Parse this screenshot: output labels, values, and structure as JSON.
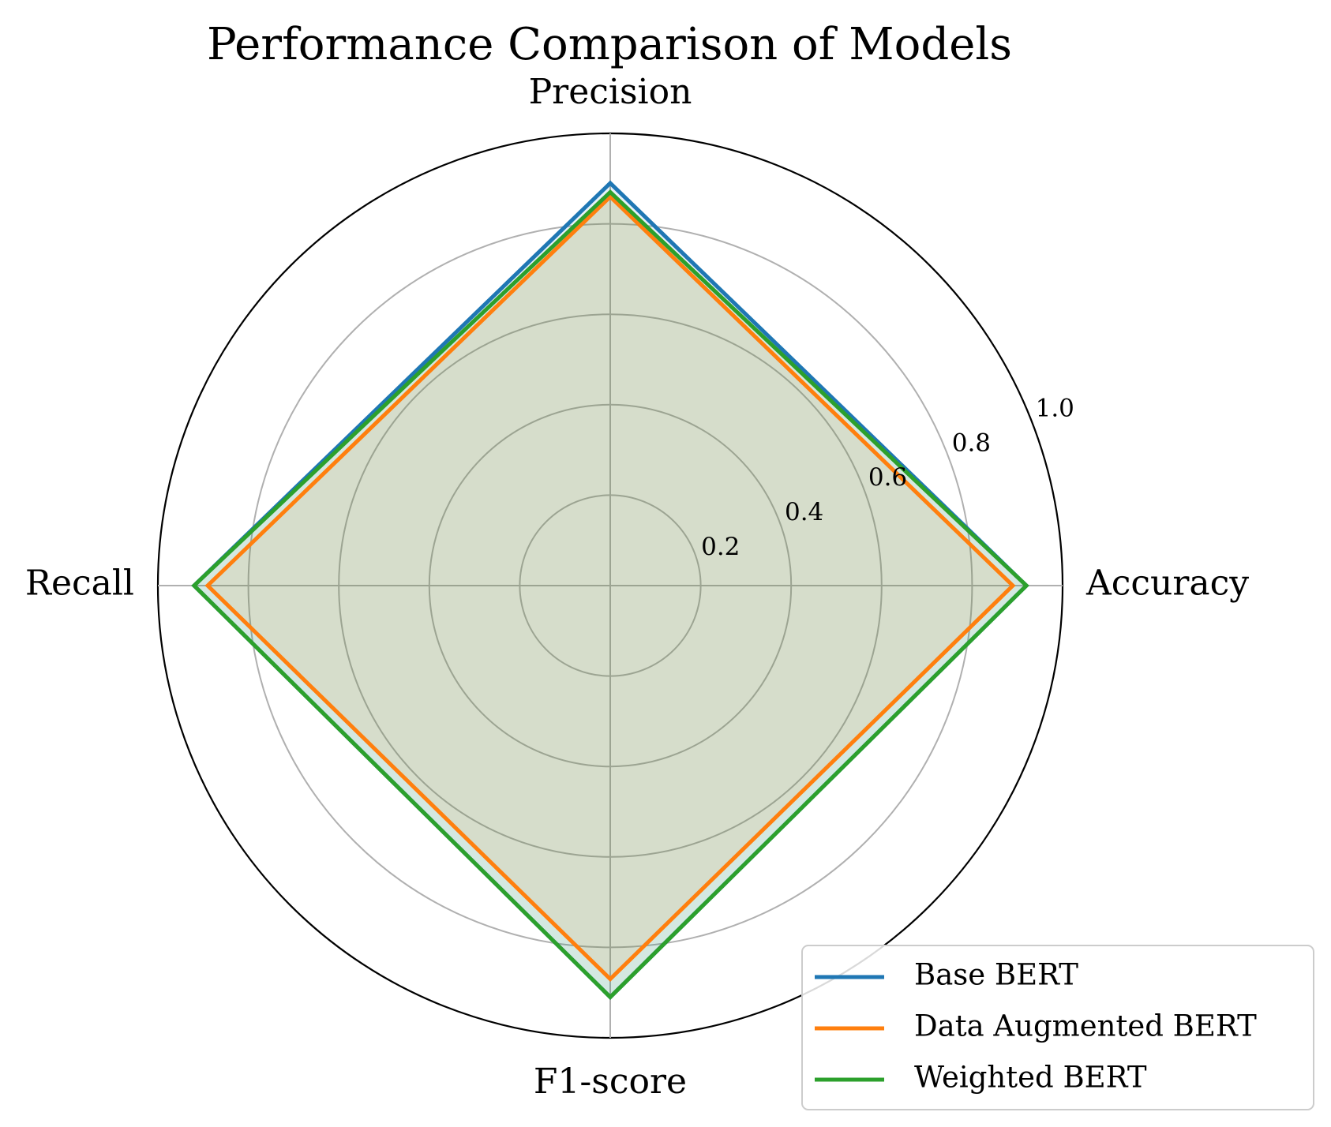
{
  "chart_data": {
    "type": "radar",
    "title": "Performance Comparison of Models",
    "axes": [
      "Accuracy",
      "Precision",
      "Recall",
      "F1-score"
    ],
    "rlim": [
      0,
      1.0
    ],
    "rticks": [
      0.2,
      0.4,
      0.6,
      0.8,
      1.0
    ],
    "rtick_labels": [
      "0.2",
      "0.4",
      "0.6",
      "0.8",
      "1.0"
    ],
    "grid": true,
    "legend_position": "bottom-right",
    "fill_color": "#d8dccd",
    "series": [
      {
        "name": "Base BERT",
        "color": "#1f77b4",
        "values": [
          0.92,
          0.89,
          0.92,
          0.91
        ]
      },
      {
        "name": "Data Augmented BERT",
        "color": "#ff7f0e",
        "values": [
          0.89,
          0.86,
          0.89,
          0.87
        ]
      },
      {
        "name": "Weighted BERT",
        "color": "#2ca02c",
        "values": [
          0.92,
          0.87,
          0.92,
          0.91
        ]
      }
    ]
  }
}
